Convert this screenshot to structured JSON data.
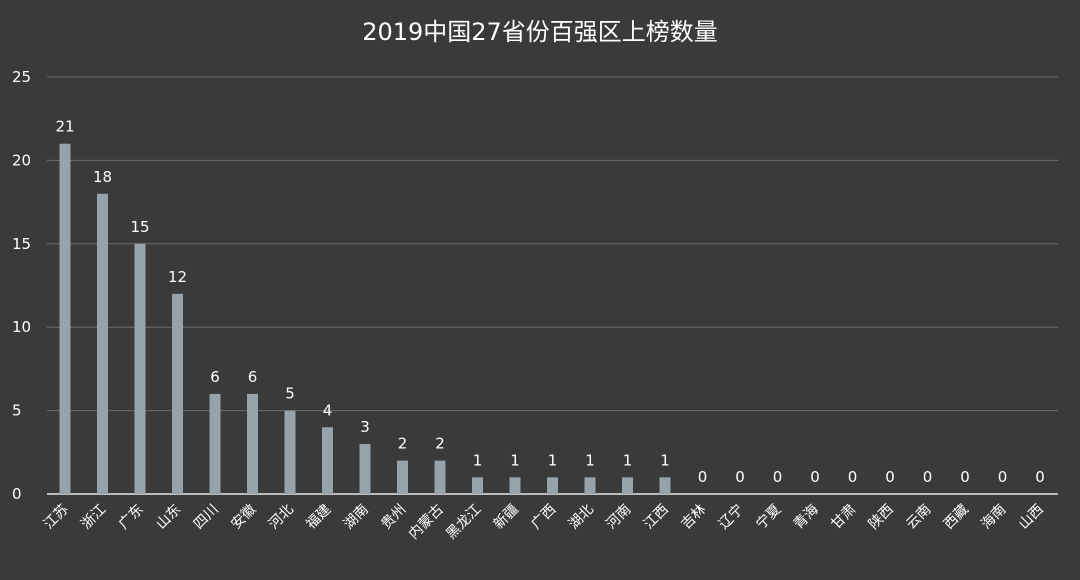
{
  "chart_data": {
    "type": "bar",
    "title": "2019中国27省份百强区上榜数量",
    "xlabel": "",
    "ylabel": "",
    "ylim": [
      0,
      25
    ],
    "yticks": [
      0,
      5,
      10,
      15,
      20,
      25
    ],
    "grid": true,
    "legend": "none",
    "categories": [
      "江苏",
      "浙江",
      "广东",
      "山东",
      "四川",
      "安徽",
      "河北",
      "福建",
      "湖南",
      "贵州",
      "内蒙古",
      "黑龙江",
      "新疆",
      "广西",
      "湖北",
      "河南",
      "江西",
      "吉林",
      "辽宁",
      "宁夏",
      "青海",
      "甘肃",
      "陕西",
      "云南",
      "西藏",
      "海南",
      "山西"
    ],
    "values": [
      21,
      18,
      15,
      12,
      6,
      6,
      5,
      4,
      3,
      2,
      2,
      1,
      1,
      1,
      1,
      1,
      1,
      0,
      0,
      0,
      0,
      0,
      0,
      0,
      0,
      0,
      0
    ]
  },
  "colors": {
    "background": "#3a3a3a",
    "bar": "#97a3aa",
    "grid": "#6e6e6e",
    "text": "#ffffff"
  }
}
